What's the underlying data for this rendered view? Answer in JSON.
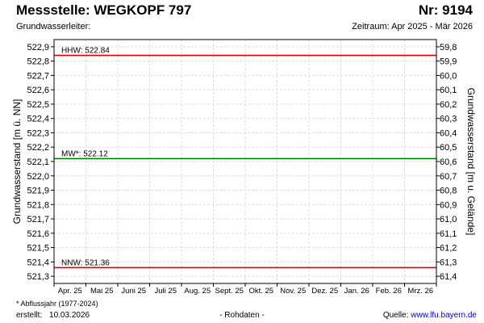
{
  "header": {
    "title": "Messstelle: WEGKOPF 797",
    "number": "Nr: 9194",
    "aquifer": "Grundwasserleiter:",
    "period": "Zeitraum: Apr 2025 - Mär 2026"
  },
  "footer": {
    "footnote": "* Abflussjahr (1977-2024)",
    "created_label": "erstellt:",
    "created_date": "10.03.2026",
    "raw_data": "- Rohdaten -",
    "source_label": "Quelle:",
    "source_link": "www.lfu.bayern.de"
  },
  "chart_data": {
    "type": "line",
    "title": "Messstelle: WEGKOPF 797",
    "ylabel": "Grundwasserstand [m ü. NN]",
    "y2label": "Grundwasserstand [m u. Gelände]",
    "ylim": [
      521.25,
      522.95
    ],
    "y2lim": [
      61.45,
      59.75
    ],
    "yticks": [
      522.9,
      522.8,
      522.7,
      522.6,
      522.5,
      522.4,
      522.3,
      522.2,
      522.1,
      522.0,
      521.9,
      521.8,
      521.7,
      521.6,
      521.5,
      521.4,
      521.3
    ],
    "yticklabels": [
      "522,9",
      "522,8",
      "522,7",
      "522,6",
      "522,5",
      "522,4",
      "522,3",
      "522,2",
      "522,1",
      "522,0",
      "521,9",
      "521,8",
      "521,7",
      "521,6",
      "521,5",
      "521,4",
      "521,3"
    ],
    "y2ticks": [
      59.8,
      59.9,
      60.0,
      60.1,
      60.2,
      60.3,
      60.4,
      60.5,
      60.6,
      60.7,
      60.8,
      60.9,
      61.0,
      61.1,
      61.2,
      61.3,
      61.4
    ],
    "y2ticklabels": [
      "59,8",
      "59,9",
      "60,0",
      "60,1",
      "60,2",
      "60,3",
      "60,4",
      "60,5",
      "60,6",
      "60,7",
      "60,8",
      "60,9",
      "61,0",
      "61,1",
      "61,2",
      "61,3",
      "61,4"
    ],
    "xticklabels": [
      "Apr. 25",
      "Mai 25",
      "Juni 25",
      "Juli 25",
      "Aug. 25",
      "Sept. 25",
      "Okt. 25",
      "Nov. 25",
      "Dez. 25",
      "Jan. 26",
      "Feb. 26",
      "Mrz. 26"
    ],
    "reference_lines": [
      {
        "label": "HHW: 522.84",
        "value": 522.84,
        "color": "#e00000"
      },
      {
        "label": "MW*: 522.12",
        "value": 522.12,
        "color": "#008000"
      },
      {
        "label": "NNW: 521.36",
        "value": 521.36,
        "color": "#e00000"
      }
    ],
    "grid": true,
    "grid_color": "#dcdcdc"
  }
}
